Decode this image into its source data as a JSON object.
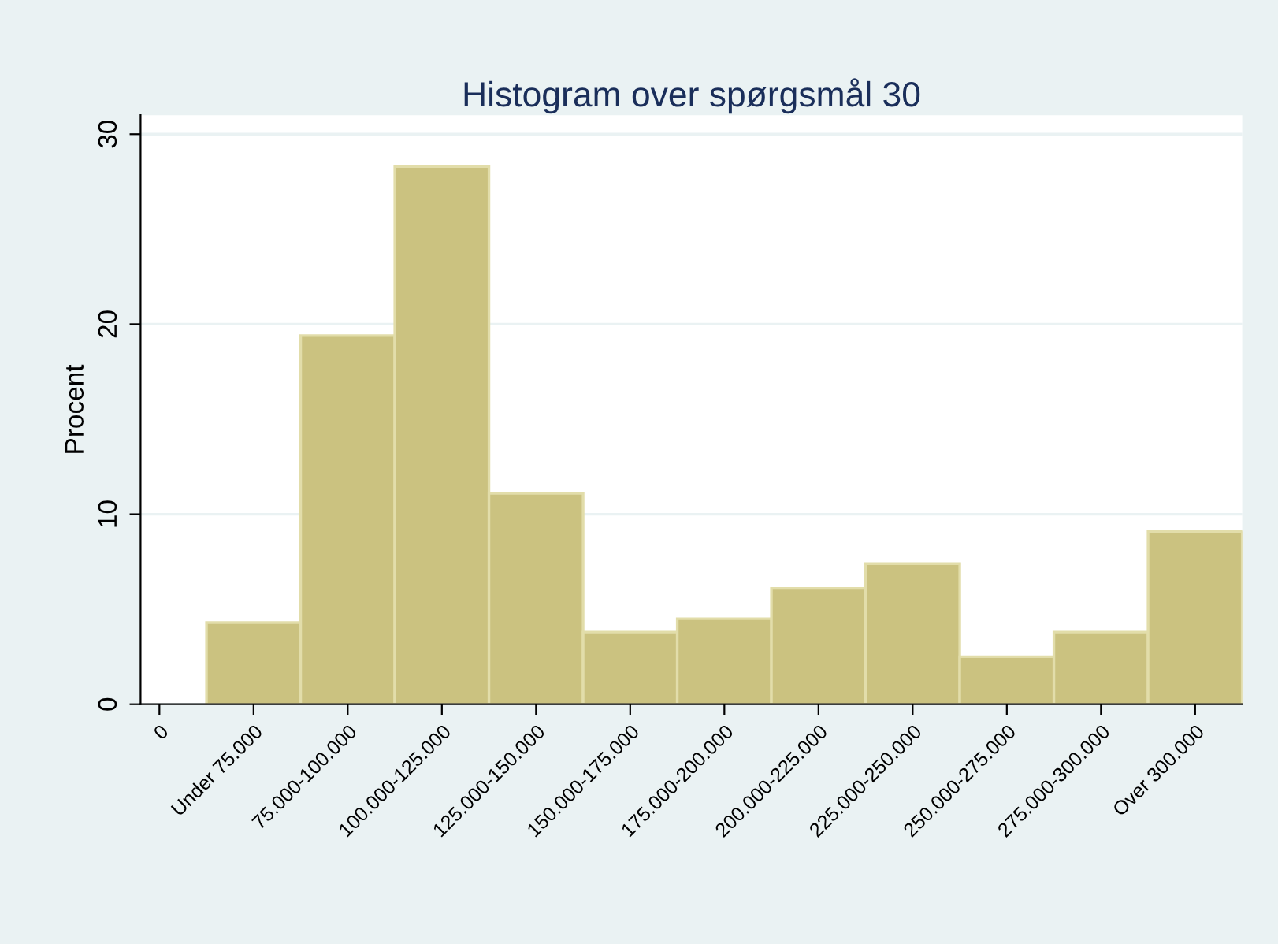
{
  "chart_data": {
    "type": "bar",
    "title": "Histogram over spørgsmål 30",
    "ylabel": "Procent",
    "categories": [
      "0",
      "Under 75.000",
      "75.000-100.000",
      "100.000-125.000",
      "125.000-150.000",
      "150.000-175.000",
      "175.000-200.000",
      "200.000-225.000",
      "225.000-250.000",
      "250.000-275.000",
      "275.000-300.000",
      "Over 300.000"
    ],
    "values": [
      null,
      4.3,
      19.4,
      28.3,
      11.1,
      3.8,
      4.5,
      6.1,
      7.4,
      2.5,
      3.8,
      9.1
    ],
    "color": "#cbc280",
    "ylim": [
      0,
      31
    ],
    "yticks": [
      0,
      10,
      20,
      30
    ],
    "grid": "y"
  }
}
